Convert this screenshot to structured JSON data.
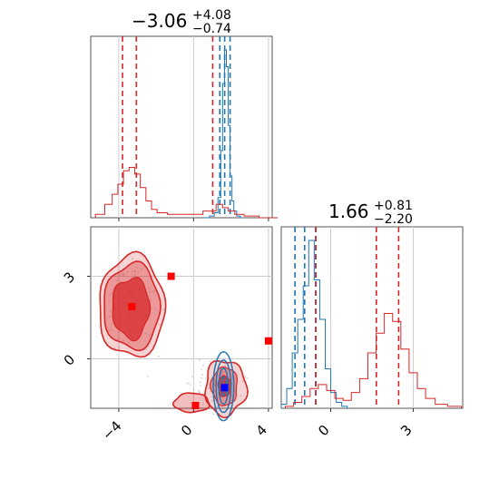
{
  "chart_data": {
    "type": "corner",
    "colors": {
      "blue": "#1f77b4",
      "red": "#d62728",
      "blue_marker": "#0000ff",
      "red_marker": "#ff0000",
      "grid": "#cccccc"
    },
    "grid": true,
    "titles": {
      "param1": {
        "median": "−3.06",
        "upper": "+4.08",
        "lower": "−0.74"
      },
      "param2": {
        "median": "1.66",
        "upper": "+0.81",
        "lower": "−2.20"
      }
    },
    "axes": {
      "param1_range": [
        -5.5,
        4.2
      ],
      "param2_range": [
        -1.8,
        4.8
      ],
      "param1_ticks": [
        -4,
        0,
        4
      ],
      "param2_ticks_y": [
        0,
        3
      ],
      "param2_ticks_x": [
        0,
        3
      ],
      "tick_labels_x_bottom_left": [
        "−4",
        "0",
        "4"
      ],
      "tick_labels_y_left": [
        "0",
        "3"
      ],
      "tick_labels_x_bottom_right": [
        "0",
        "3"
      ]
    },
    "series": [
      {
        "color": "blue",
        "param1_quantiles": [
          1.4,
          1.66,
          1.95
        ],
        "param2_quantiles": [
          -1.3,
          -0.95,
          -0.55
        ],
        "hist_param1": {
          "centers": [
            0.7,
            1.0,
            1.2,
            1.4,
            1.5,
            1.6,
            1.7,
            1.8,
            1.9,
            2.0,
            2.1,
            2.2,
            2.4,
            2.6
          ],
          "counts": [
            0,
            1,
            3,
            12,
            40,
            80,
            100,
            90,
            55,
            25,
            10,
            4,
            1,
            0
          ]
        },
        "hist_param2": {
          "centers": [
            -1.7,
            -1.5,
            -1.3,
            -1.1,
            -0.9,
            -0.7,
            -0.5,
            -0.3,
            -0.1,
            0.1,
            0.3,
            0.5
          ],
          "counts": [
            2,
            10,
            28,
            45,
            62,
            85,
            65,
            45,
            20,
            8,
            3,
            1
          ]
        },
        "contour_center": [
          1.6,
          -1.0
        ],
        "marker": [
          1.65,
          -1.05
        ]
      },
      {
        "color": "red",
        "param1_quantiles": [
          -3.8,
          -3.06,
          1.02
        ],
        "param2_quantiles": [
          -0.54,
          1.66,
          2.47
        ],
        "hist_param1": {
          "centers": [
            -5.0,
            -4.5,
            -4.2,
            -3.9,
            -3.6,
            -3.3,
            -3.0,
            -2.7,
            -2.4,
            -2.1,
            -1.8,
            -1.0,
            0.0,
            1.0,
            1.4,
            1.7,
            2.0,
            2.4,
            3.0,
            4.0
          ],
          "counts": [
            2,
            8,
            14,
            20,
            28,
            30,
            26,
            18,
            10,
            5,
            3,
            2,
            2,
            4,
            8,
            6,
            4,
            2,
            1,
            0
          ]
        },
        "hist_param2": {
          "centers": [
            -1.5,
            -1.2,
            -0.9,
            -0.6,
            -0.3,
            0.0,
            0.3,
            0.6,
            0.9,
            1.2,
            1.5,
            1.8,
            2.1,
            2.4,
            2.7,
            3.0,
            3.3,
            3.6,
            4.0,
            4.5
          ],
          "counts": [
            1,
            3,
            6,
            10,
            12,
            9,
            5,
            4,
            8,
            15,
            28,
            38,
            48,
            44,
            30,
            18,
            10,
            5,
            2,
            1
          ]
        },
        "marker": [
          -3.3,
          1.9
        ]
      }
    ],
    "extra_red_points": [
      [
        -1.2,
        3.0
      ],
      [
        0.1,
        -1.7
      ],
      [
        4.0,
        0.65
      ]
    ]
  }
}
